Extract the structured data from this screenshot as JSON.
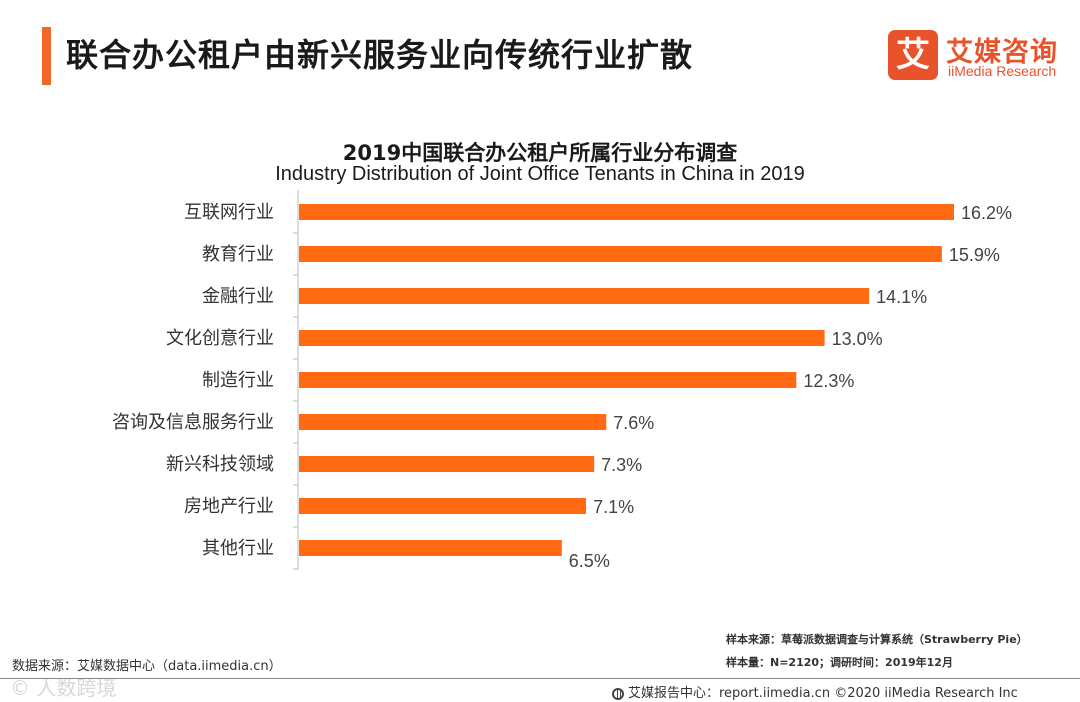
{
  "header": {
    "title": "联合办公租户由新兴服务业向传统行业扩散",
    "logo_mark": "艾",
    "logo_cn": "艾媒咨询",
    "logo_en": "iiMedia Research"
  },
  "chart_data": {
    "type": "bar",
    "orientation": "horizontal",
    "title": "2019中国联合办公租户所属行业分布调查",
    "subtitle": "Industry Distribution of Joint Office Tenants in China in 2019",
    "categories": [
      "互联网行业",
      "教育行业",
      "金融行业",
      "文化创意行业",
      "制造行业",
      "咨询及信息服务行业",
      "新兴科技领域",
      "房地产行业",
      "其他行业"
    ],
    "values": [
      16.2,
      15.9,
      14.1,
      13.0,
      12.3,
      7.6,
      7.3,
      7.1,
      6.5
    ],
    "value_labels": [
      "16.2%",
      "15.9%",
      "14.1%",
      "13.0%",
      "12.3%",
      "7.6%",
      "7.3%",
      "7.1%",
      "6.5%"
    ],
    "unit": "%",
    "xlim": [
      0,
      16.2
    ],
    "bar_color": "#ff6a13",
    "grid": false
  },
  "notes": {
    "sample_source": "样本来源：草莓派数据调查与计算系统（Strawberry Pie）",
    "sample_size": "样本量：N=2120；调研时间：2019年12月"
  },
  "footer": {
    "data_source": "数据来源：艾媒数据中心（data.iimedia.cn）",
    "watermark": "© 人数跨境",
    "report": "艾媒报告中心：report.iimedia.cn ©2020  iiMedia Research  Inc"
  },
  "colors": {
    "accent": "#f2682a",
    "brand": "#e8532b",
    "bar": "#ff6a13"
  }
}
